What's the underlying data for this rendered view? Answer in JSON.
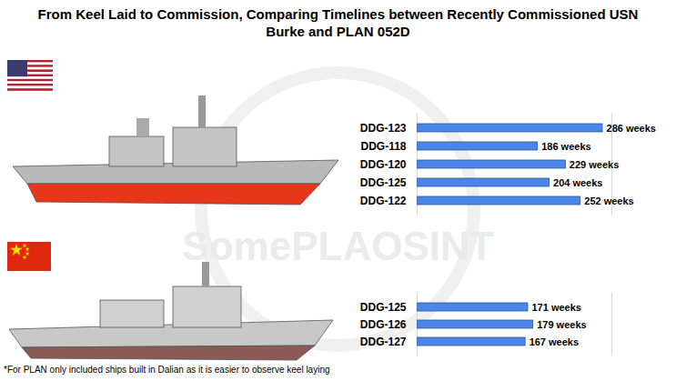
{
  "title": "From Keel Laid to Commission, Comparing Timelines between Recently Commissioned USN Burke and PLAN 052D",
  "note": "*For PLAN only included ships built in Dalian as it is easier to observe keel laying",
  "watermark": "SomePLAOSINT",
  "chart_data": [
    {
      "type": "bar",
      "orientation": "horizontal",
      "categories": [
        "DDG-123",
        "DDG-118",
        "DDG-120",
        "DDG-125",
        "DDG-122"
      ],
      "values": [
        286,
        186,
        229,
        204,
        252
      ],
      "value_labels": [
        "286 weeks",
        "186 weeks",
        "229 weeks",
        "204 weeks",
        "252 weeks"
      ],
      "data_labels": true,
      "color": "#4a86e8",
      "xlim": [
        0,
        300
      ],
      "tick_labels": "y"
    },
    {
      "type": "bar",
      "orientation": "horizontal",
      "categories": [
        "DDG-125",
        "DDG-126",
        "DDG-127"
      ],
      "values": [
        171,
        179,
        167
      ],
      "value_labels": [
        "171 weeks",
        "179 weeks",
        "167 weeks"
      ],
      "data_labels": true,
      "color": "#4a86e8",
      "xlim": [
        0,
        300
      ],
      "tick_labels": "y"
    }
  ]
}
